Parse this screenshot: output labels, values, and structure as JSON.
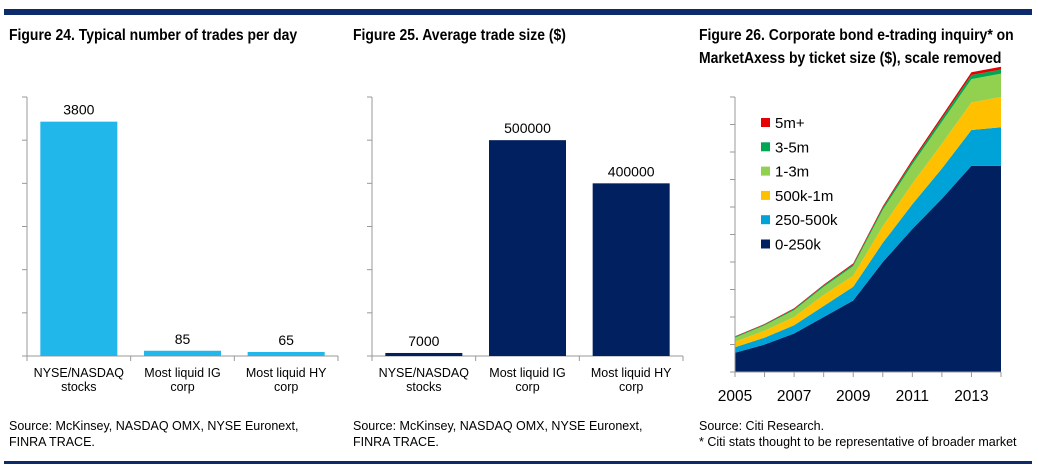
{
  "colors": {
    "rule": "#0d2a6b",
    "fig24_bar": "#22b7ea",
    "fig25_bar": "#002060",
    "fig26_series": [
      "#002060",
      "#00a3d8",
      "#ffc000",
      "#92d050",
      "#00a651",
      "#e60000"
    ]
  },
  "figures": [
    {
      "title": "Figure 24. Typical number of trades per day",
      "source_lines": [
        "Source: McKinsey, NASDAQ OMX, NYSE Euronext,",
        "FINRA TRACE."
      ]
    },
    {
      "title": "Figure 25. Average trade size ($)",
      "source_lines": [
        "Source: McKinsey, NASDAQ OMX, NYSE Euronext,",
        "FINRA TRACE."
      ]
    },
    {
      "title_lines": [
        "Figure 26. Corporate bond e-trading inquiry* on",
        "MarketAxess by ticket size ($), scale removed"
      ],
      "source_lines": [
        "Source: Citi Research.",
        "* Citi stats thought to be representative of broader market"
      ]
    }
  ],
  "chart_data": [
    {
      "type": "bar",
      "title": "Figure 24. Typical number of trades per day",
      "categories": [
        [
          "NYSE/NASDAQ",
          "stocks"
        ],
        [
          "Most liquid IG",
          "corp"
        ],
        [
          "Most liquid HY",
          "corp"
        ]
      ],
      "values": [
        3800,
        85,
        65
      ],
      "data_labels": [
        "3800",
        "85",
        "65"
      ],
      "ylim": [
        0,
        4200
      ],
      "grid": false
    },
    {
      "type": "bar",
      "title": "Figure 25. Average trade size ($)",
      "categories": [
        [
          "NYSE/NASDAQ",
          "stocks"
        ],
        [
          "Most liquid IG",
          "corp"
        ],
        [
          "Most liquid HY",
          "corp"
        ]
      ],
      "values": [
        7000,
        500000,
        400000
      ],
      "data_labels": [
        "7000",
        "500000",
        "400000"
      ],
      "ylim": [
        0,
        600000
      ],
      "grid": false
    },
    {
      "type": "area",
      "title": "Figure 26. Corporate bond e-trading inquiry* on MarketAxess by ticket size ($), scale removed",
      "x": [
        2005,
        2006,
        2007,
        2008,
        2009,
        2010,
        2011,
        2012,
        2013,
        2014
      ],
      "x_ticks": [
        "2005",
        "2007",
        "2009",
        "2011",
        "2013"
      ],
      "y_scale_shown": false,
      "ylim": [
        0,
        100
      ],
      "legend_position": "top-left",
      "series": [
        {
          "name": "0-250k",
          "values": [
            7,
            10,
            14,
            20,
            26,
            40,
            52,
            63,
            75,
            75
          ]
        },
        {
          "name": "250-500k",
          "values": [
            2,
            2.5,
            3,
            4,
            5,
            7,
            9,
            11,
            13,
            14
          ]
        },
        {
          "name": "500k-1m",
          "values": [
            2,
            2.5,
            3,
            4,
            4,
            6,
            7.5,
            9,
            10,
            11
          ]
        },
        {
          "name": "1-3m",
          "values": [
            1.5,
            2,
            2.5,
            3,
            3.5,
            6,
            7,
            8,
            8.5,
            8.5
          ]
        },
        {
          "name": "3-5m",
          "values": [
            0.3,
            0.3,
            0.4,
            0.5,
            0.6,
            0.8,
            1,
            1.2,
            1.5,
            1.5
          ]
        },
        {
          "name": "5m+",
          "values": [
            0.2,
            0.2,
            0.3,
            0.3,
            0.4,
            0.5,
            0.7,
            0.9,
            1,
            1
          ]
        }
      ]
    }
  ]
}
